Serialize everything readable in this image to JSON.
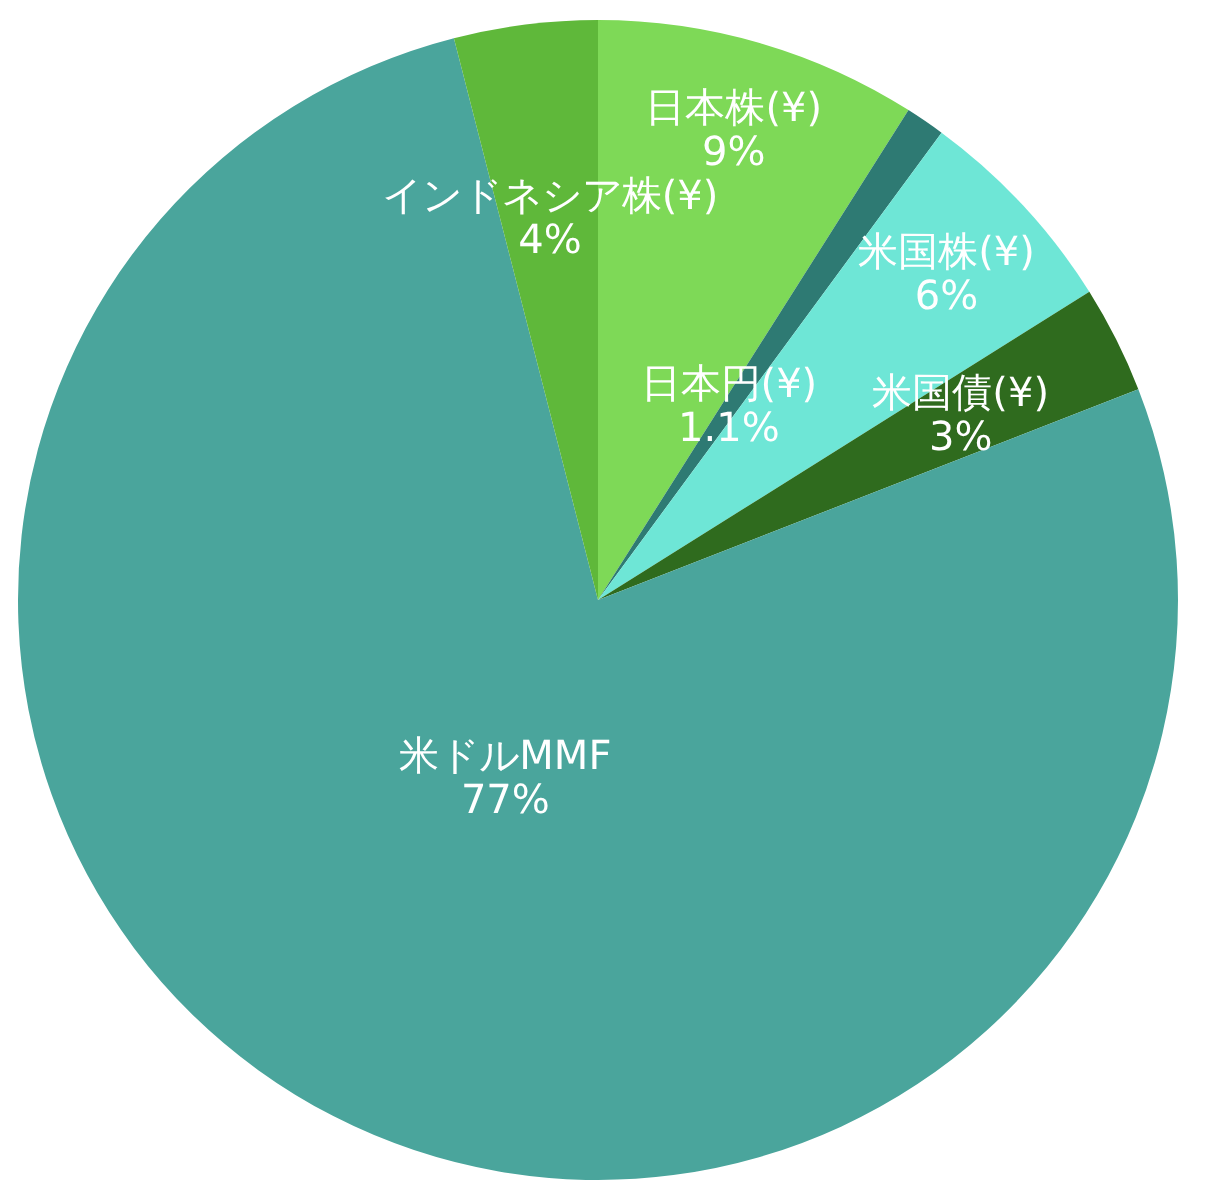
{
  "chart_data": {
    "type": "pie",
    "categories": [
      "日本株(¥)",
      "日本円(¥)",
      "米国株(¥)",
      "米国債(¥)",
      "米ドルMMF",
      "インドネシア株(¥)"
    ],
    "values": [
      9,
      1.1,
      6,
      3,
      77,
      4
    ],
    "value_labels": [
      "9%",
      "1.1%",
      "6%",
      "3%",
      "77%",
      "4%"
    ],
    "colors": [
      "#7ed957",
      "#2e7a73",
      "#6ee6d6",
      "#2f6b1e",
      "#4aa59c",
      "#5fb83a"
    ],
    "legend": false
  }
}
